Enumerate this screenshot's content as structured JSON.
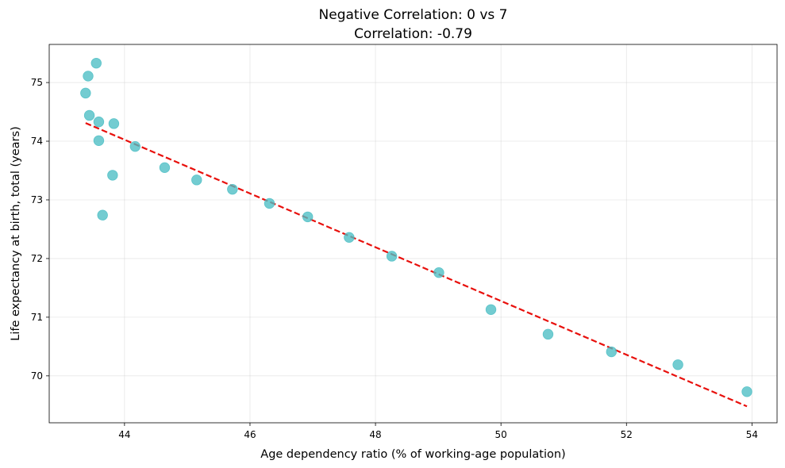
{
  "chart_data": {
    "type": "scatter",
    "title": "Negative Correlation: 0 vs 7",
    "subtitle": "Correlation: -0.79",
    "xlabel": "Age dependency ratio (% of working-age population)",
    "ylabel": "Life expectancy at birth, total (years)",
    "xlim": [
      42.8,
      54.4
    ],
    "ylim": [
      69.2,
      75.65
    ],
    "xticks": [
      44,
      46,
      48,
      50,
      52,
      54
    ],
    "yticks": [
      70,
      71,
      72,
      73,
      74,
      75
    ],
    "grid": true,
    "series": [
      {
        "color": "#4bbec4",
        "x": [
          43.38,
          43.42,
          43.44,
          43.55,
          43.59,
          43.59,
          43.65,
          43.81,
          43.83,
          44.17,
          44.64,
          45.15,
          45.72,
          46.31,
          46.92,
          47.58,
          48.26,
          49.01,
          49.84,
          50.75,
          51.76,
          52.82,
          53.92
        ],
        "y": [
          74.82,
          75.11,
          74.44,
          75.33,
          74.33,
          74.01,
          72.74,
          73.42,
          74.3,
          73.91,
          73.55,
          73.34,
          73.18,
          72.94,
          72.71,
          72.36,
          72.04,
          71.76,
          71.13,
          70.71,
          70.41,
          70.19,
          69.73
        ]
      }
    ],
    "trendline": {
      "color": "#e8100c",
      "style": "dashed",
      "x": [
        43.38,
        53.92
      ],
      "y": [
        74.31,
        69.48
      ]
    }
  }
}
